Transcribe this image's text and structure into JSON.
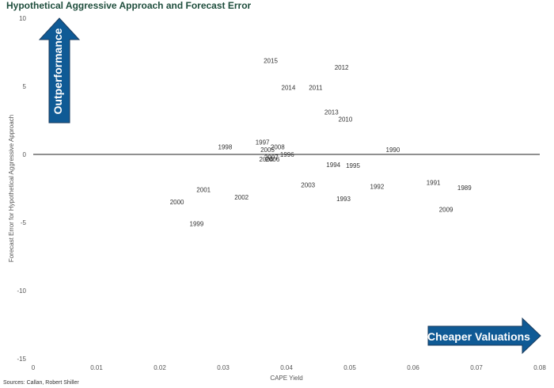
{
  "title": "Hypothetical Aggressive Approach and Forecast Error",
  "source": "Sources: Callan, Robert Shiller",
  "colors": {
    "arrow_fill": "#0f5a95",
    "arrow_stroke": "#1a3a5c",
    "title": "#1f4e3d"
  },
  "annotations": {
    "up_arrow": "Outperformance",
    "right_arrow": "Cheaper Valuations"
  },
  "chart_data": {
    "type": "scatter",
    "title": "Hypothetical Aggressive Approach and Forecast Error",
    "xlabel": "CAPE Yield",
    "ylabel": "Forecast Error for Hypothetical Aggressive Approach",
    "xlim": [
      0,
      0.08
    ],
    "ylim": [
      -15,
      10
    ],
    "xticks": [
      "0",
      "0.01",
      "0.02",
      "0.03",
      "0.04",
      "0.05",
      "0.06",
      "0.07",
      "0.08"
    ],
    "yticks": [
      "10",
      "5",
      "0",
      "-5",
      "-10",
      "-15"
    ],
    "grid": false,
    "points": [
      {
        "label": "2015",
        "x": 0.0375,
        "y": 6.9
      },
      {
        "label": "2012",
        "x": 0.0487,
        "y": 6.4
      },
      {
        "label": "2014",
        "x": 0.0403,
        "y": 4.9
      },
      {
        "label": "2011",
        "x": 0.0446,
        "y": 4.9
      },
      {
        "label": "2013",
        "x": 0.0471,
        "y": 3.1
      },
      {
        "label": "2010",
        "x": 0.0493,
        "y": 2.6
      },
      {
        "label": "1997",
        "x": 0.0362,
        "y": 0.9
      },
      {
        "label": "2008",
        "x": 0.0386,
        "y": 0.55
      },
      {
        "label": "1998",
        "x": 0.0303,
        "y": 0.55
      },
      {
        "label": "2005",
        "x": 0.037,
        "y": 0.35
      },
      {
        "label": "1990",
        "x": 0.0568,
        "y": 0.35
      },
      {
        "label": "1996",
        "x": 0.0401,
        "y": 0.0
      },
      {
        "label": "2007",
        "x": 0.0376,
        "y": -0.2
      },
      {
        "label": "2004",
        "x": 0.0368,
        "y": -0.35
      },
      {
        "label": "2006",
        "x": 0.0378,
        "y": -0.35
      },
      {
        "label": "1994",
        "x": 0.0474,
        "y": -0.75
      },
      {
        "label": "1995",
        "x": 0.0505,
        "y": -0.8
      },
      {
        "label": "1991",
        "x": 0.0632,
        "y": -2.05
      },
      {
        "label": "2003",
        "x": 0.0434,
        "y": -2.25
      },
      {
        "label": "1992",
        "x": 0.0543,
        "y": -2.35
      },
      {
        "label": "1989",
        "x": 0.0681,
        "y": -2.45
      },
      {
        "label": "2001",
        "x": 0.0269,
        "y": -2.6
      },
      {
        "label": "2002",
        "x": 0.0329,
        "y": -3.15
      },
      {
        "label": "1993",
        "x": 0.049,
        "y": -3.25
      },
      {
        "label": "2000",
        "x": 0.0227,
        "y": -3.5
      },
      {
        "label": "2009",
        "x": 0.0652,
        "y": -4.05
      },
      {
        "label": "1999",
        "x": 0.0258,
        "y": -5.1
      }
    ]
  }
}
